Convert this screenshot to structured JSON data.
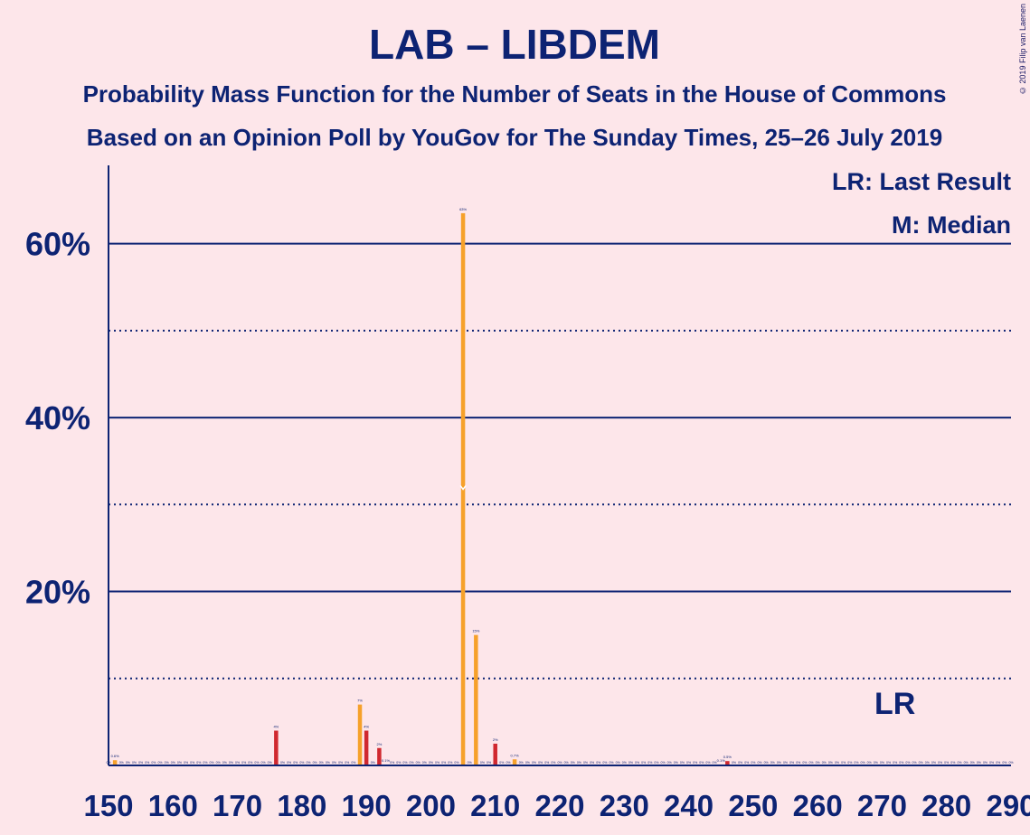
{
  "copyright": "© 2019 Filip van Laenen",
  "chart_data": {
    "type": "bar",
    "title": "LAB – LIBDEM",
    "subtitle": "Probability Mass Function for the Number of Seats in the House of Commons",
    "subtitle2": "Based on an Opinion Poll by YouGov for The Sunday Times, 25–26 July 2019",
    "legend": [
      "LR: Last Result",
      "M: Median"
    ],
    "legend_position": "top-right",
    "last_result_label": "LR",
    "last_result_seat": 272,
    "median_label": "M",
    "median_seat": 205,
    "xlim": [
      150,
      290
    ],
    "ylim": [
      0,
      69
    ],
    "x_ticks": [
      150,
      160,
      170,
      180,
      190,
      200,
      210,
      220,
      230,
      240,
      250,
      260,
      270,
      280,
      290
    ],
    "y_ticks_major": [
      20,
      40,
      60
    ],
    "y_tick_labels": [
      "20%",
      "40%",
      "60%"
    ],
    "y_ticks_minor": [
      10,
      30,
      50
    ],
    "colors": {
      "odd": "#f6a12a",
      "even": "#d0282f",
      "axis": "#0d2373",
      "background": "#fde6ea",
      "median_mark": "#ffffff"
    },
    "bars": [
      {
        "seat": 151,
        "value": 0.6,
        "label": "0.6%"
      },
      {
        "seat": 176,
        "value": 4,
        "label": "4%"
      },
      {
        "seat": 189,
        "value": 7,
        "label": "7%"
      },
      {
        "seat": 190,
        "value": 4,
        "label": "4%"
      },
      {
        "seat": 192,
        "value": 2,
        "label": "2%"
      },
      {
        "seat": 193,
        "value": 0.1,
        "label": "0.1%"
      },
      {
        "seat": 205,
        "value": 63.5,
        "label": "63%"
      },
      {
        "seat": 207,
        "value": 15,
        "label": "15%"
      },
      {
        "seat": 210,
        "value": 2.5,
        "label": "2%"
      },
      {
        "seat": 213,
        "value": 0.7,
        "label": "0.7%"
      },
      {
        "seat": 245,
        "value": 0.1,
        "label": "0.1%"
      },
      {
        "seat": 246,
        "value": 0.5,
        "label": "0.5%"
      }
    ],
    "zero_label": "0%"
  }
}
